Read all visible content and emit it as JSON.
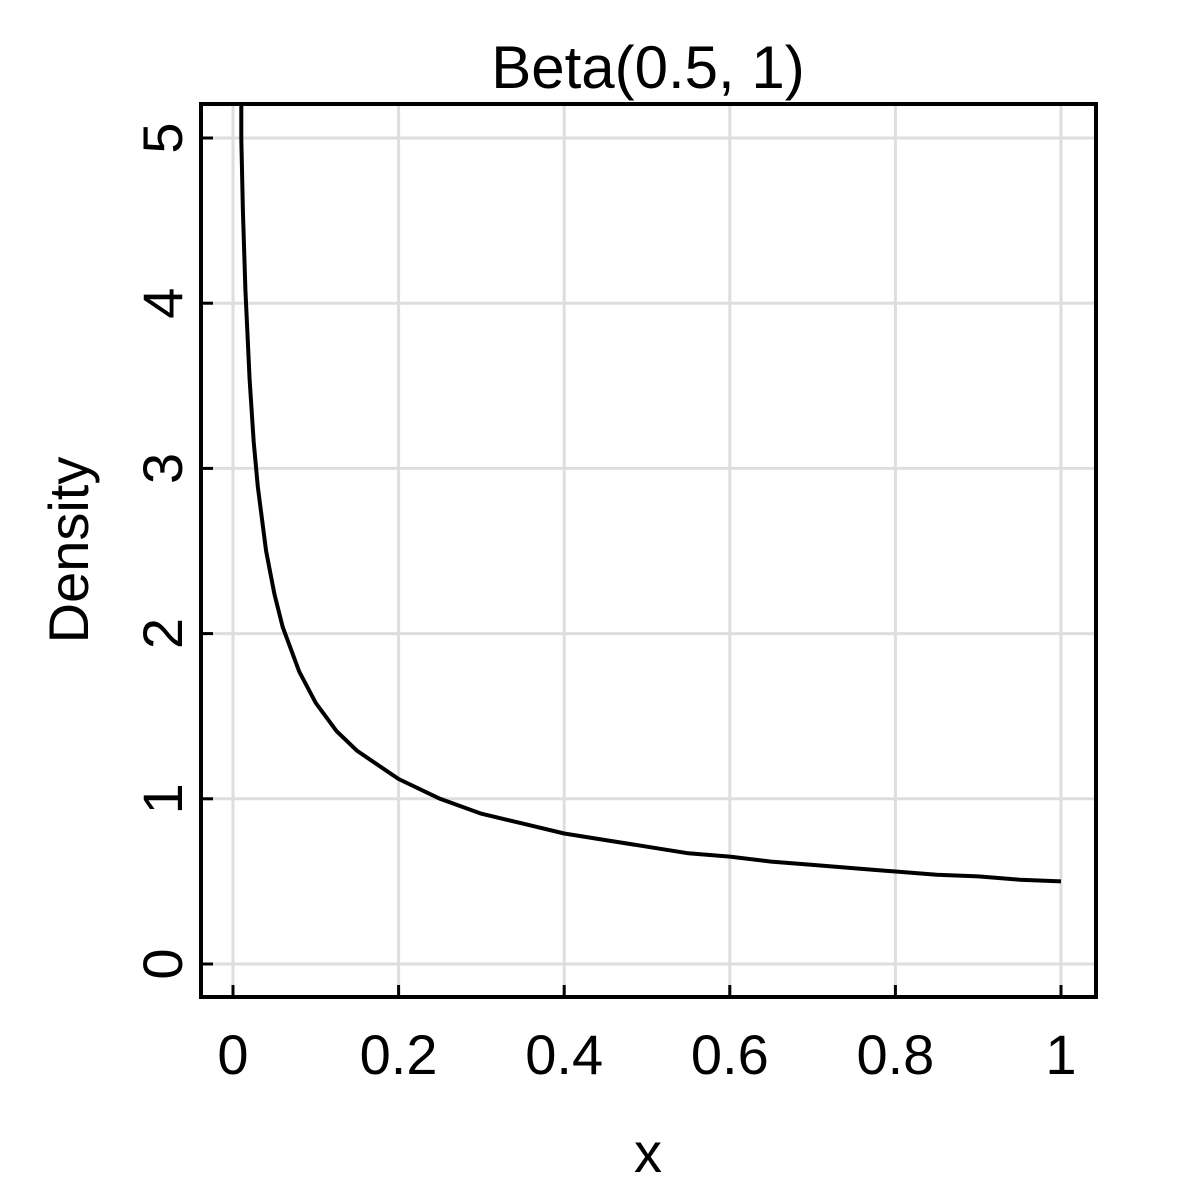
{
  "chart_data": {
    "type": "line",
    "title": "Beta(0.5, 1)",
    "xlabel": "x",
    "ylabel": "Density",
    "xlim": [
      -0.02,
      1.02
    ],
    "ylim": [
      -0.2,
      5.2
    ],
    "grid": true,
    "x_ticks": [
      0,
      0.2,
      0.4,
      0.6,
      0.8,
      1
    ],
    "x_tick_labels": [
      "0",
      "0.2",
      "0.4",
      "0.6",
      "0.8",
      "1"
    ],
    "y_ticks": [
      0,
      1,
      2,
      3,
      4,
      5
    ],
    "y_tick_labels": [
      "0",
      "1",
      "2",
      "3",
      "4",
      "5"
    ],
    "series": [
      {
        "color": "#000000",
        "x": [
          0.01,
          0.012,
          0.015,
          0.02,
          0.025,
          0.03,
          0.04,
          0.05,
          0.06,
          0.08,
          0.1,
          0.125,
          0.15,
          0.2,
          0.25,
          0.3,
          0.35,
          0.4,
          0.45,
          0.5,
          0.55,
          0.6,
          0.65,
          0.7,
          0.75,
          0.8,
          0.85,
          0.9,
          0.95,
          1.0
        ],
        "y": [
          5.0,
          4.56,
          4.08,
          3.54,
          3.16,
          2.89,
          2.5,
          2.24,
          2.04,
          1.77,
          1.58,
          1.41,
          1.29,
          1.12,
          1.0,
          0.91,
          0.85,
          0.79,
          0.75,
          0.71,
          0.67,
          0.65,
          0.62,
          0.6,
          0.58,
          0.56,
          0.54,
          0.53,
          0.51,
          0.5
        ]
      }
    ]
  }
}
